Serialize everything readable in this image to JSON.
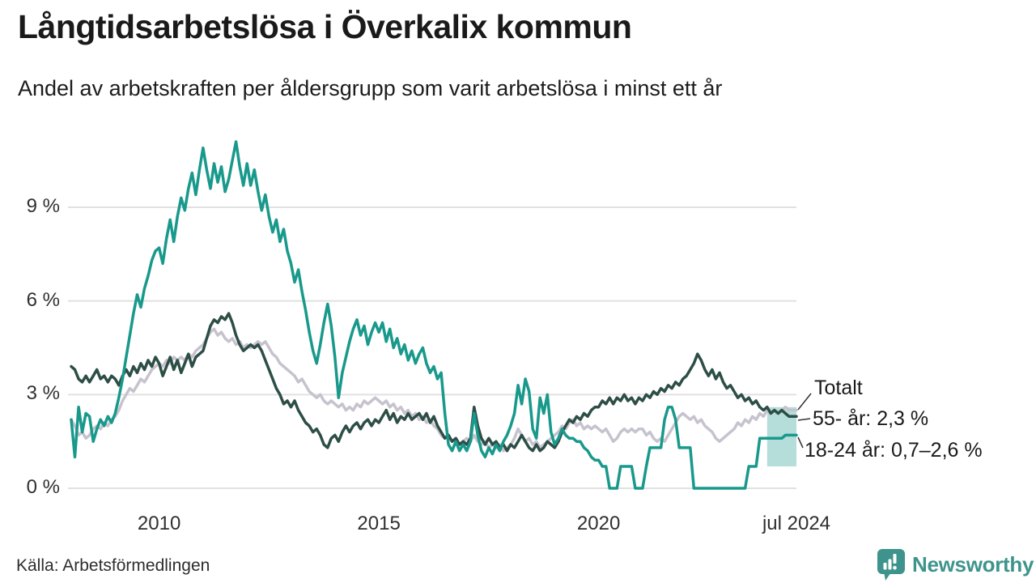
{
  "header": {
    "title": "Långtidsarbetslösa i Överkalix kommun",
    "subtitle": "Andel av arbetskraften per åldersgrupp som varit arbetslösa i minst ett år"
  },
  "annotations": {
    "total_label": "Totalt",
    "older_label": "55- år: 2,3 %",
    "young_label": "18-24 år: 0,7–2,6 %"
  },
  "footer": {
    "source": "Källa: Arbetsförmedlingen"
  },
  "brand": {
    "name": "Newsworthy",
    "color": "#3e948c"
  },
  "colors": {
    "young_line": "#18998b",
    "older_line": "#2d4e46",
    "total_line": "#c7c3ce",
    "gridline": "#e1e1e1",
    "connector": "#333333",
    "band_fill": "#18998b"
  },
  "chart_data": {
    "type": "line",
    "title": "Långtidsarbetslösa i Överkalix kommun",
    "subtitle": "Andel av arbetskraften per åldersgrupp som varit arbetslösa i minst ett år",
    "unit": "% av arbetskraften",
    "x_range": {
      "start_year": 2008.0,
      "end_year": 2024.5,
      "interval": "monthly"
    },
    "ylim": [
      0,
      11.5
    ],
    "grid": "horizontal",
    "y_ticks": [
      {
        "label": "0 %",
        "value": 0
      },
      {
        "label": "3 %",
        "value": 3
      },
      {
        "label": "6 %",
        "value": 6
      },
      {
        "label": "9 %",
        "value": 9
      }
    ],
    "x_ticks": [
      {
        "label": "2010",
        "year": 2010.0
      },
      {
        "label": "2015",
        "year": 2015.0
      },
      {
        "label": "2020",
        "year": 2020.0
      },
      {
        "label": "jul 2024",
        "year": 2024.5
      }
    ],
    "band": {
      "series": "18-24 år",
      "start_index": 190,
      "low": 0.7,
      "high": 2.6,
      "label": "0,7–2,6 %"
    },
    "series": [
      {
        "name": "Totalt",
        "end_value": "2,5 %",
        "color": "#c7c3ce",
        "values": [
          2.2,
          2.0,
          1.7,
          1.8,
          1.6,
          1.7,
          1.9,
          2.0,
          1.9,
          2.1,
          2.0,
          2.2,
          2.3,
          2.5,
          2.8,
          3.0,
          3.2,
          3.1,
          3.3,
          3.5,
          3.4,
          3.6,
          3.8,
          3.9,
          4.0,
          3.9,
          4.1,
          4.0,
          4.2,
          4.1,
          4.2,
          4.1,
          4.3,
          4.2,
          4.4,
          4.5,
          4.6,
          4.8,
          5.0,
          5.1,
          4.9,
          5.0,
          4.8,
          4.7,
          4.8,
          4.6,
          4.7,
          4.5,
          4.6,
          4.5,
          4.6,
          4.7,
          4.6,
          4.7,
          4.5,
          4.3,
          4.2,
          4.0,
          3.9,
          3.8,
          3.7,
          3.6,
          3.4,
          3.5,
          3.3,
          3.1,
          3.0,
          2.9,
          3.0,
          2.8,
          2.7,
          2.8,
          2.7,
          2.6,
          2.7,
          2.5,
          2.6,
          2.5,
          2.7,
          2.6,
          2.8,
          2.7,
          2.8,
          2.9,
          2.8,
          2.7,
          2.8,
          2.6,
          2.7,
          2.5,
          2.6,
          2.4,
          2.5,
          2.3,
          2.4,
          2.2,
          2.3,
          2.1,
          2.2,
          2.0,
          1.9,
          1.7,
          1.6,
          1.7,
          1.5,
          1.6,
          1.4,
          1.5,
          1.6,
          1.5,
          1.7,
          1.5,
          1.4,
          1.5,
          1.3,
          1.4,
          1.3,
          1.4,
          1.2,
          1.3,
          1.4,
          1.6,
          1.9,
          1.7,
          1.5,
          1.6,
          1.4,
          1.5,
          1.3,
          1.4,
          1.5,
          1.6,
          1.7,
          1.8,
          2.0,
          1.9,
          2.1,
          2.2,
          2.0,
          2.1,
          1.9,
          2.0,
          1.9,
          2.0,
          1.9,
          1.8,
          1.9,
          1.7,
          1.5,
          1.6,
          1.8,
          1.9,
          1.8,
          1.9,
          1.8,
          1.9,
          1.9,
          1.7,
          1.8,
          1.6,
          1.5,
          1.6,
          1.5,
          1.7,
          1.9,
          2.1,
          2.3,
          2.4,
          2.3,
          2.2,
          2.3,
          2.1,
          2.2,
          2.0,
          1.9,
          1.8,
          1.6,
          1.5,
          1.6,
          1.7,
          1.8,
          1.9,
          2.1,
          2.0,
          2.2,
          2.1,
          2.3,
          2.2,
          2.4,
          2.3,
          2.5,
          2.4,
          2.5,
          2.4,
          2.5,
          2.6,
          2.5,
          2.5,
          2.5
        ]
      },
      {
        "name": "55- år",
        "end_value": "2,3 %",
        "color": "#2d4e46",
        "values": [
          3.9,
          3.8,
          3.5,
          3.4,
          3.6,
          3.4,
          3.6,
          3.8,
          3.5,
          3.6,
          3.4,
          3.6,
          3.5,
          3.3,
          3.6,
          3.8,
          3.6,
          3.9,
          3.7,
          4.0,
          3.8,
          4.1,
          3.9,
          4.2,
          4.0,
          3.6,
          3.9,
          4.2,
          3.8,
          4.1,
          3.7,
          4.0,
          4.3,
          3.9,
          4.2,
          4.3,
          4.4,
          4.8,
          5.2,
          5.4,
          5.3,
          5.5,
          5.4,
          5.6,
          5.3,
          4.9,
          4.6,
          4.4,
          4.5,
          4.6,
          4.5,
          4.6,
          4.4,
          4.1,
          3.8,
          3.5,
          3.2,
          3.0,
          2.7,
          2.8,
          2.6,
          2.8,
          2.5,
          2.3,
          2.1,
          2.0,
          1.8,
          1.9,
          1.7,
          1.4,
          1.3,
          1.6,
          1.7,
          1.5,
          1.8,
          2.0,
          1.8,
          2.0,
          2.1,
          1.9,
          2.1,
          2.2,
          2.0,
          2.2,
          2.1,
          2.3,
          2.5,
          2.2,
          2.4,
          2.1,
          2.3,
          2.2,
          2.4,
          2.2,
          2.3,
          2.4,
          2.2,
          2.4,
          2.1,
          2.3,
          2.0,
          1.8,
          1.6,
          1.7,
          1.5,
          1.6,
          1.4,
          1.5,
          1.4,
          1.6,
          2.6,
          2.0,
          1.6,
          1.4,
          1.6,
          1.4,
          1.5,
          1.3,
          1.4,
          1.2,
          1.4,
          1.3,
          1.5,
          1.7,
          1.5,
          1.3,
          1.2,
          1.4,
          1.2,
          1.3,
          1.5,
          1.4,
          1.3,
          1.5,
          1.8,
          2.0,
          2.2,
          2.1,
          2.3,
          2.2,
          2.4,
          2.3,
          2.5,
          2.6,
          2.6,
          2.8,
          2.7,
          2.9,
          2.7,
          2.9,
          2.8,
          3.0,
          2.8,
          2.9,
          2.7,
          2.9,
          2.8,
          3.0,
          2.9,
          3.1,
          3.0,
          3.2,
          3.1,
          3.3,
          3.2,
          3.4,
          3.3,
          3.5,
          3.6,
          3.8,
          4.0,
          4.3,
          4.1,
          3.8,
          3.6,
          3.8,
          3.5,
          3.7,
          3.4,
          3.2,
          3.3,
          3.1,
          2.9,
          3.0,
          2.8,
          2.9,
          2.7,
          2.8,
          2.6,
          2.5,
          2.6,
          2.4,
          2.5,
          2.4,
          2.5,
          2.4,
          2.3,
          2.3,
          2.3
        ]
      },
      {
        "name": "18-24 år",
        "end_value": "0,7–2,6 %",
        "color": "#18998b",
        "values": [
          2.2,
          1.0,
          2.6,
          1.8,
          2.4,
          2.3,
          1.5,
          1.9,
          2.2,
          2.0,
          2.3,
          2.1,
          2.4,
          2.9,
          3.5,
          4.2,
          4.9,
          5.6,
          6.2,
          5.8,
          6.4,
          6.8,
          7.3,
          7.6,
          7.7,
          7.2,
          8.0,
          8.6,
          7.9,
          8.7,
          9.3,
          8.9,
          9.6,
          10.1,
          9.4,
          10.2,
          10.9,
          10.2,
          9.6,
          10.4,
          9.8,
          10.3,
          9.5,
          9.9,
          10.5,
          11.1,
          10.3,
          9.7,
          10.4,
          9.7,
          10.2,
          9.5,
          8.9,
          9.4,
          8.7,
          8.2,
          8.6,
          7.9,
          8.3,
          7.6,
          7.2,
          6.6,
          7.0,
          6.3,
          5.7,
          5.0,
          4.4,
          4.0,
          4.6,
          5.3,
          5.9,
          5.2,
          4.2,
          2.9,
          3.7,
          4.2,
          4.7,
          5.1,
          5.4,
          4.9,
          5.2,
          4.6,
          5.0,
          5.3,
          5.0,
          5.3,
          4.7,
          5.1,
          4.5,
          4.8,
          4.3,
          4.6,
          4.1,
          4.4,
          4.0,
          4.3,
          4.5,
          4.0,
          3.7,
          3.9,
          3.5,
          3.7,
          2.4,
          1.4,
          1.2,
          1.5,
          1.2,
          1.4,
          1.2,
          1.5,
          2.4,
          1.7,
          1.2,
          1.0,
          1.3,
          1.1,
          1.4,
          1.2,
          1.5,
          1.7,
          2.0,
          2.4,
          3.3,
          2.7,
          3.5,
          3.1,
          1.9,
          1.6,
          2.9,
          2.4,
          3.0,
          1.8,
          1.4,
          1.6,
          1.9,
          1.7,
          1.6,
          1.6,
          1.5,
          1.5,
          1.3,
          1.2,
          1.0,
          0.9,
          0.9,
          0.7,
          0.7,
          0.0,
          0.0,
          0.0,
          0.7,
          0.7,
          0.7,
          0.7,
          0.0,
          0.0,
          0.0,
          0.7,
          1.3,
          1.3,
          1.3,
          1.3,
          2.2,
          2.6,
          2.6,
          2.2,
          1.3,
          1.3,
          1.3,
          1.3,
          0.0,
          0.0,
          0.0,
          0.0,
          0.0,
          0.0,
          0.0,
          0.0,
          0.0,
          0.0,
          0.0,
          0.0,
          0.0,
          0.0,
          0.0,
          0.7,
          0.7,
          0.7,
          1.6,
          1.6,
          1.6,
          1.6,
          1.6,
          1.6,
          1.6,
          1.7,
          1.7,
          1.7,
          1.7
        ]
      }
    ]
  }
}
